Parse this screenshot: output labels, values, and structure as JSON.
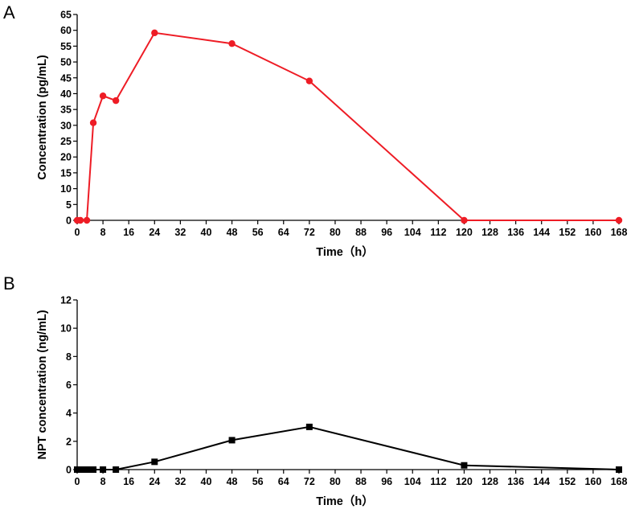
{
  "chart_data": [
    {
      "panel": "A",
      "type": "line",
      "xlabel": "Time（h）",
      "ylabel": "Concentration (pg/mL)",
      "xlim": [
        0,
        168
      ],
      "ylim": [
        0,
        65
      ],
      "xticks": [
        0,
        8,
        16,
        24,
        32,
        40,
        48,
        56,
        64,
        72,
        80,
        88,
        96,
        104,
        112,
        120,
        128,
        136,
        144,
        152,
        160,
        168
      ],
      "yticks": [
        0,
        5,
        10,
        15,
        20,
        25,
        30,
        35,
        40,
        45,
        50,
        55,
        60,
        65
      ],
      "grid": false,
      "series": [
        {
          "color": "#ee1c25",
          "marker": "circle",
          "x": [
            0,
            1,
            3,
            5,
            8,
            12,
            24,
            48,
            72,
            120,
            168
          ],
          "y": [
            0,
            0,
            0,
            30.8,
            39.3,
            37.8,
            59.2,
            55.8,
            44.0,
            0,
            0
          ]
        }
      ]
    },
    {
      "panel": "B",
      "type": "line",
      "xlabel": "Time（h）",
      "ylabel": "NPT concentration (ng/mL)",
      "xlim": [
        0,
        168
      ],
      "ylim": [
        0,
        12
      ],
      "xticks": [
        0,
        8,
        16,
        24,
        32,
        40,
        48,
        56,
        64,
        72,
        80,
        88,
        96,
        104,
        112,
        120,
        128,
        136,
        144,
        152,
        160,
        168
      ],
      "yticks": [
        0,
        2,
        4,
        6,
        8,
        10,
        12
      ],
      "grid": false,
      "series": [
        {
          "color": "#000000",
          "marker": "square",
          "x": [
            0,
            1,
            2,
            3,
            4,
            5,
            8,
            12,
            24,
            48,
            72,
            120,
            168
          ],
          "y": [
            0,
            0,
            0,
            0,
            0,
            0,
            0,
            0,
            0.55,
            2.08,
            3.02,
            0.3,
            0
          ]
        }
      ]
    }
  ]
}
